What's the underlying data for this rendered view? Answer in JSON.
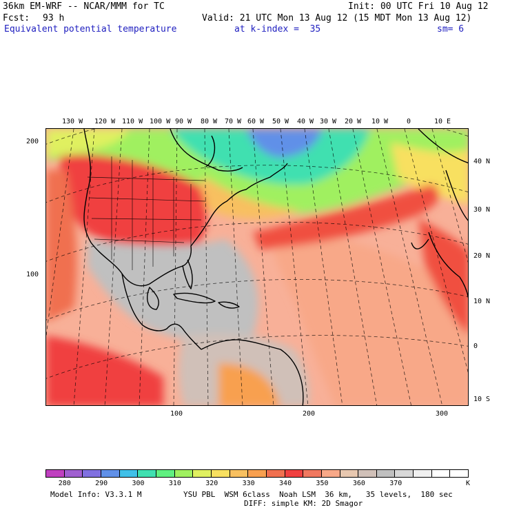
{
  "header": {
    "model": "36km EM-WRF -- NCAR/MMM for TC",
    "init": "Init: 00 UTC Fri 10 Aug 12",
    "fcst_label": "Fcst:",
    "fcst_value": "93 h",
    "valid": "Valid: 21 UTC Mon 13 Aug 12 (15 MDT Mon 13 Aug 12)",
    "field": "Equivalent potential temperature",
    "level": "at k-index =  35",
    "smooth": "sm= 6"
  },
  "map": {
    "lon_labels": [
      "130 W",
      "120 W",
      "110 W",
      "100 W",
      "90 W",
      "80 W",
      "70 W",
      "60 W",
      "50 W",
      "40 W",
      "30 W",
      "20 W",
      "10 W",
      "0",
      "10 E"
    ],
    "lat_labels": [
      "40 N",
      "30 N",
      "20 N",
      "10 N",
      "0",
      "10 S"
    ],
    "y_grid_labels": [
      "200",
      "100"
    ],
    "x_grid_labels": [
      "100",
      "200",
      "300"
    ]
  },
  "colorbar": {
    "colors": [
      "#c040c0",
      "#a060d0",
      "#8070e0",
      "#6090e8",
      "#40c0e8",
      "#40e0b0",
      "#60f080",
      "#a0f060",
      "#e0f060",
      "#f8e060",
      "#f8c060",
      "#f8a050",
      "#f07050",
      "#f04040",
      "#f07860",
      "#f8a888",
      "#e8c8b0",
      "#d0c0b8",
      "#c0c0c0",
      "#d8d8d8",
      "#f0f0f0",
      "#ffffff",
      "#ffffff"
    ],
    "labels": [
      "280",
      "290",
      "300",
      "310",
      "320",
      "330",
      "340",
      "350",
      "360",
      "370"
    ],
    "unit": "K"
  },
  "footer": {
    "line1_left": "Model Info: V3.3.1 M",
    "line1_right": "YSU PBL  WSM 6class  Noah LSM  36 km,   35 levels,  180 sec",
    "line2": "DIFF: simple KM: 2D Smagor"
  }
}
